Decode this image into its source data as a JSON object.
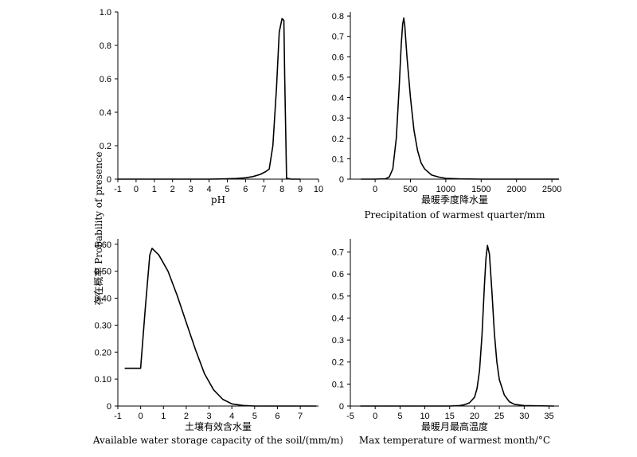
{
  "figure": {
    "ylabel": "存在概率 Probability of presence"
  },
  "chart_data": [
    {
      "type": "line",
      "xlabel": "pH",
      "xlabel_en": "",
      "xlim": [
        -1,
        10
      ],
      "ylim": [
        0,
        1.0
      ],
      "xticks": [
        -1,
        0,
        1,
        2,
        3,
        4,
        5,
        6,
        7,
        8,
        9,
        10
      ],
      "yticks": [
        0,
        0.2,
        0.4,
        0.6,
        0.8,
        1.0
      ],
      "ytick_labels": [
        "0",
        "0.2",
        "0.4",
        "0.6",
        "0.8",
        "1.0"
      ],
      "x": [
        -1,
        0,
        1,
        2,
        3,
        4,
        4.5,
        5,
        5.5,
        6,
        6.4,
        6.8,
        7.1,
        7.3,
        7.5,
        7.7,
        7.85,
        8.0,
        8.1,
        8.15,
        8.25,
        8.5,
        9.0
      ],
      "y": [
        0,
        0,
        0,
        0,
        0,
        0,
        0.001,
        0.002,
        0.004,
        0.008,
        0.015,
        0.028,
        0.045,
        0.06,
        0.2,
        0.55,
        0.88,
        0.96,
        0.95,
        0.6,
        0.005,
        0,
        0
      ]
    },
    {
      "type": "line",
      "xlabel": "最暖季度降水量",
      "xlabel_en": "Precipitation of warmest quarter/mm",
      "xlim": [
        -350,
        2600
      ],
      "ylim": [
        0,
        0.82
      ],
      "xticks": [
        0,
        500,
        1000,
        1500,
        2000,
        2500
      ],
      "yticks": [
        0,
        0.1,
        0.2,
        0.3,
        0.4,
        0.5,
        0.6,
        0.7,
        0.8
      ],
      "ytick_labels": [
        "0",
        "0.1",
        "0.2",
        "0.3",
        "0.4",
        "0.5",
        "0.6",
        "0.7",
        "0.8"
      ],
      "x": [
        -200,
        0,
        150,
        200,
        250,
        300,
        340,
        370,
        390,
        405,
        420,
        450,
        500,
        550,
        600,
        650,
        700,
        800,
        900,
        1000,
        1200,
        1500,
        2000,
        2600
      ],
      "y": [
        0,
        0,
        0.002,
        0.01,
        0.05,
        0.2,
        0.45,
        0.66,
        0.76,
        0.79,
        0.75,
        0.6,
        0.4,
        0.24,
        0.14,
        0.08,
        0.05,
        0.02,
        0.01,
        0.004,
        0.001,
        0,
        0,
        0
      ]
    },
    {
      "type": "line",
      "xlabel": "土壤有效含水量",
      "xlabel_en": "Available water storage capacity of the soil/(mm/m)",
      "xlim": [
        -1,
        7.8
      ],
      "ylim": [
        0,
        0.62
      ],
      "xticks": [
        -1,
        0,
        1,
        2,
        3,
        4,
        5,
        6,
        7
      ],
      "yticks": [
        0,
        0.1,
        0.2,
        0.3,
        0.4,
        0.5,
        0.6
      ],
      "ytick_labels": [
        "0",
        "0.10",
        "0.20",
        "0.30",
        "0.40",
        "0.50",
        "0.60"
      ],
      "x": [
        -0.7,
        -0.3,
        0,
        0.2,
        0.4,
        0.5,
        0.8,
        1.2,
        1.6,
        2.0,
        2.4,
        2.8,
        3.2,
        3.6,
        4.0,
        4.5,
        5.0,
        6.0,
        7.0,
        7.7
      ],
      "y": [
        0.14,
        0.14,
        0.14,
        0.36,
        0.56,
        0.585,
        0.56,
        0.5,
        0.41,
        0.31,
        0.21,
        0.12,
        0.06,
        0.025,
        0.008,
        0.002,
        0,
        0,
        0,
        0
      ]
    },
    {
      "type": "line",
      "xlabel": "最暖月最高温度",
      "xlabel_en": "Max temperature of warmest month/°C",
      "xlim": [
        -5,
        37
      ],
      "ylim": [
        0,
        0.76
      ],
      "xticks": [
        -5,
        0,
        5,
        10,
        15,
        20,
        25,
        30,
        35
      ],
      "yticks": [
        0,
        0.1,
        0.2,
        0.3,
        0.4,
        0.5,
        0.6,
        0.7
      ],
      "ytick_labels": [
        "0",
        "0.1",
        "0.2",
        "0.3",
        "0.4",
        "0.5",
        "0.6",
        "0.7"
      ],
      "x": [
        -3,
        0,
        10,
        15,
        17,
        18,
        19,
        20,
        20.5,
        21,
        21.5,
        22,
        22.3,
        22.6,
        23,
        23.5,
        24,
        24.5,
        25,
        26,
        27,
        28,
        30,
        36
      ],
      "y": [
        0,
        0,
        0,
        0,
        0.002,
        0.006,
        0.015,
        0.04,
        0.08,
        0.16,
        0.32,
        0.55,
        0.67,
        0.73,
        0.69,
        0.52,
        0.33,
        0.2,
        0.12,
        0.05,
        0.02,
        0.008,
        0.002,
        0
      ]
    }
  ]
}
